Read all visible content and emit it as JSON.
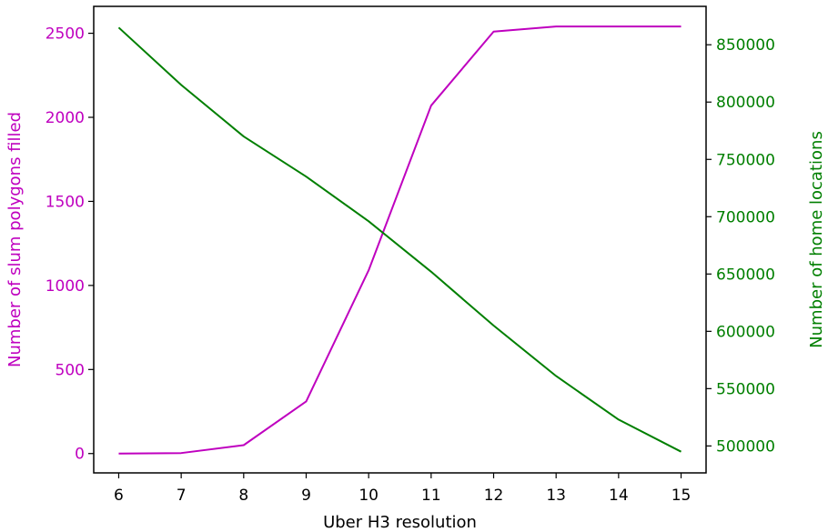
{
  "chart_data": {
    "type": "line",
    "title": "",
    "xlabel": "Uber H3 resolution",
    "x": [
      6,
      7,
      8,
      9,
      10,
      11,
      12,
      13,
      14,
      15
    ],
    "xlim": [
      5.6,
      15.4
    ],
    "x_ticks": [
      "6",
      "7",
      "8",
      "9",
      "10",
      "11",
      "12",
      "13",
      "14",
      "15"
    ],
    "series": [
      {
        "name": "Number of slum polygons filled",
        "axis": "left",
        "color": "#bf00bf",
        "values": [
          0,
          3,
          50,
          310,
          1090,
          2070,
          2510,
          2540,
          2540,
          2540
        ]
      },
      {
        "name": "Number of home locations",
        "axis": "right",
        "color": "#007f00",
        "values": [
          865000,
          815000,
          770000,
          735000,
          696000,
          652000,
          605000,
          561000,
          523000,
          495000
        ]
      }
    ],
    "y_left": {
      "label": "Number of slum polygons filled",
      "color": "#bf00bf",
      "lim": [
        -115,
        2660
      ],
      "ticks": [
        0,
        500,
        1000,
        1500,
        2000,
        2500
      ],
      "tick_labels": [
        "0",
        "500",
        "1000",
        "1500",
        "2000",
        "2500"
      ]
    },
    "y_right": {
      "label": "Number of home locations",
      "color": "#007f00",
      "lim": [
        476500,
        883500
      ],
      "ticks": [
        500000,
        550000,
        600000,
        650000,
        700000,
        750000,
        800000,
        850000
      ],
      "tick_labels": [
        "500000",
        "550000",
        "600000",
        "650000",
        "700000",
        "750000",
        "800000",
        "850000"
      ]
    },
    "grid": false,
    "legend": "none"
  }
}
